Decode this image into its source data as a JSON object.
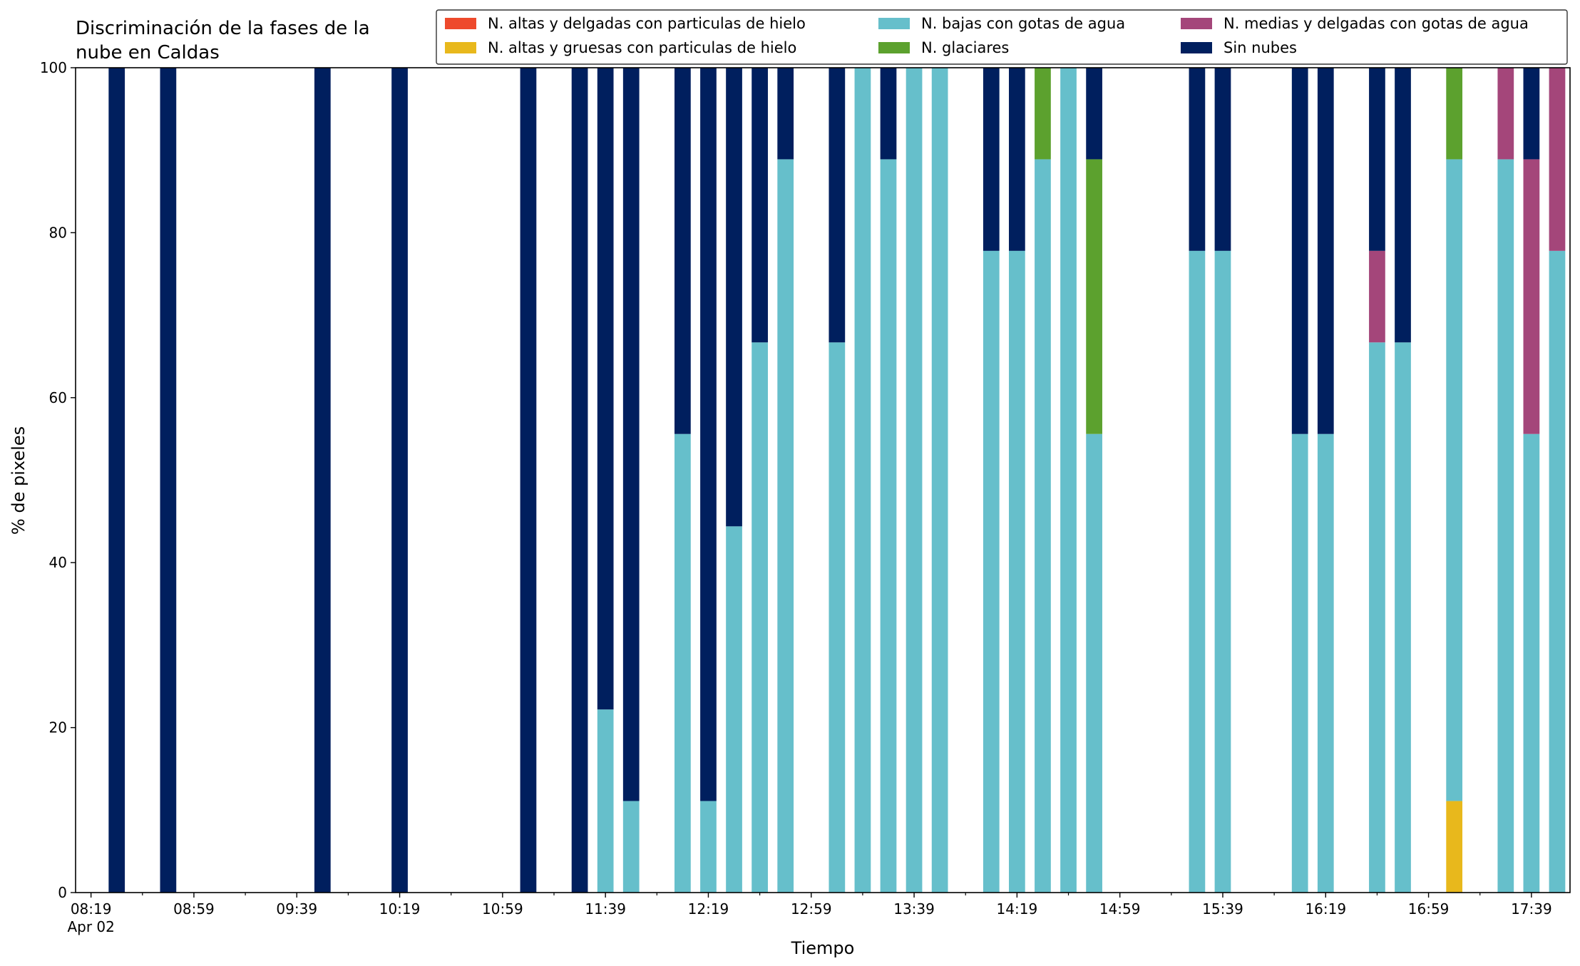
{
  "chart_data": {
    "type": "bar",
    "stacked": true,
    "title_lines": [
      "Discriminación de la fases de la",
      "nube en Caldas"
    ],
    "xlabel": "Tiempo",
    "ylabel": "% de pixeles",
    "ylim": [
      0,
      100
    ],
    "yticks": [
      0,
      20,
      40,
      60,
      80,
      100
    ],
    "xlim": [
      "08:13",
      "17:54"
    ],
    "xticks": [
      {
        "time": "08:19",
        "label": "08:19",
        "sublabel": "Apr 02"
      },
      {
        "time": "08:59",
        "label": "08:59"
      },
      {
        "time": "09:39",
        "label": "09:39"
      },
      {
        "time": "10:19",
        "label": "10:19"
      },
      {
        "time": "10:59",
        "label": "10:59"
      },
      {
        "time": "11:39",
        "label": "11:39"
      },
      {
        "time": "12:19",
        "label": "12:19"
      },
      {
        "time": "12:59",
        "label": "12:59"
      },
      {
        "time": "13:39",
        "label": "13:39"
      },
      {
        "time": "14:19",
        "label": "14:19"
      },
      {
        "time": "14:59",
        "label": "14:59"
      },
      {
        "time": "15:39",
        "label": "15:39"
      },
      {
        "time": "16:19",
        "label": "16:19"
      },
      {
        "time": "16:59",
        "label": "16:59"
      },
      {
        "time": "17:39",
        "label": "17:39"
      }
    ],
    "grid": false,
    "legend_position": "top-right",
    "series": [
      {
        "key": "ahi",
        "name": "N. altas y delgadas con particulas de hielo",
        "color": "#ee4a2c"
      },
      {
        "key": "agi",
        "name": "N. altas y gruesas con particulas de hielo",
        "color": "#e8b81c"
      },
      {
        "key": "bga",
        "name": "N. bajas con gotas de agua",
        "color": "#66bfcb"
      },
      {
        "key": "gla",
        "name": "N. glaciares",
        "color": "#5ca12e"
      },
      {
        "key": "mda",
        "name": "N. medias y delgadas con gotas de agua",
        "color": "#a4467a"
      },
      {
        "key": "sin",
        "name": "Sin nubes",
        "color": "#001f5e"
      }
    ],
    "stack_order": [
      "ahi",
      "agi",
      "bga",
      "gla",
      "mda",
      "sin"
    ],
    "bars": [
      {
        "time": "08:29",
        "sin": 100
      },
      {
        "time": "08:49",
        "sin": 100
      },
      {
        "time": "09:49",
        "sin": 100
      },
      {
        "time": "10:19",
        "sin": 100
      },
      {
        "time": "11:09",
        "sin": 100
      },
      {
        "time": "11:29",
        "sin": 100
      },
      {
        "time": "11:39",
        "bga": 22.2,
        "sin": 77.8
      },
      {
        "time": "11:49",
        "bga": 11.1,
        "sin": 88.9
      },
      {
        "time": "12:09",
        "bga": 55.6,
        "sin": 44.4
      },
      {
        "time": "12:19",
        "bga": 11.1,
        "sin": 88.9
      },
      {
        "time": "12:29",
        "bga": 44.4,
        "sin": 55.6
      },
      {
        "time": "12:39",
        "bga": 66.7,
        "sin": 33.3
      },
      {
        "time": "12:49",
        "bga": 88.9,
        "sin": 11.1
      },
      {
        "time": "13:09",
        "bga": 66.7,
        "sin": 33.3
      },
      {
        "time": "13:19",
        "bga": 100
      },
      {
        "time": "13:29",
        "bga": 88.9,
        "sin": 11.1
      },
      {
        "time": "13:39",
        "bga": 100
      },
      {
        "time": "13:49",
        "bga": 100
      },
      {
        "time": "14:09",
        "bga": 77.8,
        "sin": 22.2
      },
      {
        "time": "14:19",
        "bga": 77.8,
        "sin": 22.2
      },
      {
        "time": "14:29",
        "bga": 88.9,
        "gla": 11.1
      },
      {
        "time": "14:39",
        "bga": 100
      },
      {
        "time": "14:49",
        "bga": 55.6,
        "gla": 33.3,
        "sin": 11.1
      },
      {
        "time": "15:29",
        "bga": 77.8,
        "sin": 22.2
      },
      {
        "time": "15:39",
        "bga": 77.8,
        "sin": 22.2
      },
      {
        "time": "16:09",
        "bga": 55.6,
        "sin": 44.4
      },
      {
        "time": "16:19",
        "bga": 55.6,
        "sin": 44.4
      },
      {
        "time": "16:39",
        "bga": 66.7,
        "mda": 11.1,
        "sin": 22.2
      },
      {
        "time": "16:49",
        "bga": 66.7,
        "sin": 33.3
      },
      {
        "time": "17:09",
        "agi": 11.1,
        "bga": 77.8,
        "gla": 11.1
      },
      {
        "time": "17:29",
        "bga": 88.9,
        "mda": 11.1
      },
      {
        "time": "17:39",
        "bga": 55.6,
        "mda": 33.3,
        "sin": 11.1
      },
      {
        "time": "17:49",
        "bga": 77.8,
        "mda": 22.2
      }
    ]
  }
}
